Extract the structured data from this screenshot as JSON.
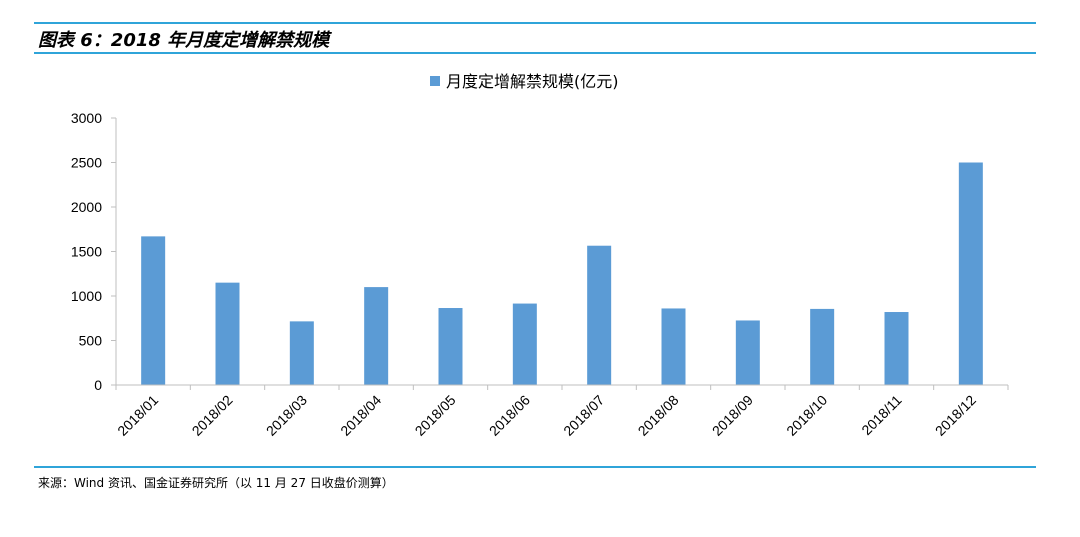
{
  "figure": {
    "title": "图表 6：2018 年月度定增解禁规模",
    "source": "来源：Wind 资讯、国金证券研究所（以 11 月 27 日收盘价测算）"
  },
  "colors": {
    "rule": "#2fa4d9",
    "bar": "#5b9bd5",
    "axis": "#bfbfbf"
  },
  "chart_data": {
    "type": "bar",
    "categories": [
      "2018/01",
      "2018/02",
      "2018/03",
      "2018/04",
      "2018/05",
      "2018/06",
      "2018/07",
      "2018/08",
      "2018/09",
      "2018/10",
      "2018/11",
      "2018/12"
    ],
    "series": [
      {
        "name": "月度定增解禁规模(亿元)",
        "values": [
          1670,
          1150,
          715,
          1100,
          865,
          915,
          1565,
          860,
          725,
          855,
          820,
          2500
        ]
      }
    ],
    "ylim": [
      0,
      3000
    ],
    "yticks": [
      0,
      500,
      1000,
      1500,
      2000,
      2500,
      3000
    ],
    "grid": false,
    "legend_position": "top-center"
  }
}
